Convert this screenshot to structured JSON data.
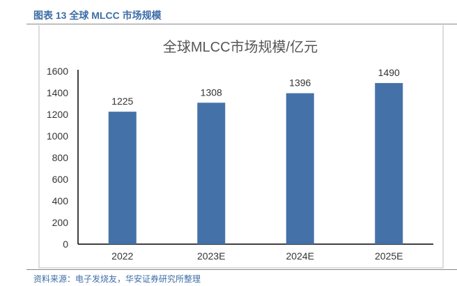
{
  "header": {
    "title": "图表 13 全球 MLCC 市场规模"
  },
  "footer": {
    "source": "资料来源：电子发烧友，华安证券研究所整理"
  },
  "colors": {
    "bar": "#4472a8",
    "header": "#3d6da6"
  },
  "chart_data": {
    "type": "bar",
    "title": "全球MLCC市场规模/亿元",
    "categories": [
      "2022",
      "2023E",
      "2024E",
      "2025E"
    ],
    "values": [
      1225,
      1308,
      1396,
      1490
    ],
    "yticks": [
      0,
      200,
      400,
      600,
      800,
      1000,
      1200,
      1400,
      1600
    ],
    "ylim": [
      0,
      1600
    ],
    "xlabel": "",
    "ylabel": "",
    "grid": false,
    "legend": "none"
  }
}
